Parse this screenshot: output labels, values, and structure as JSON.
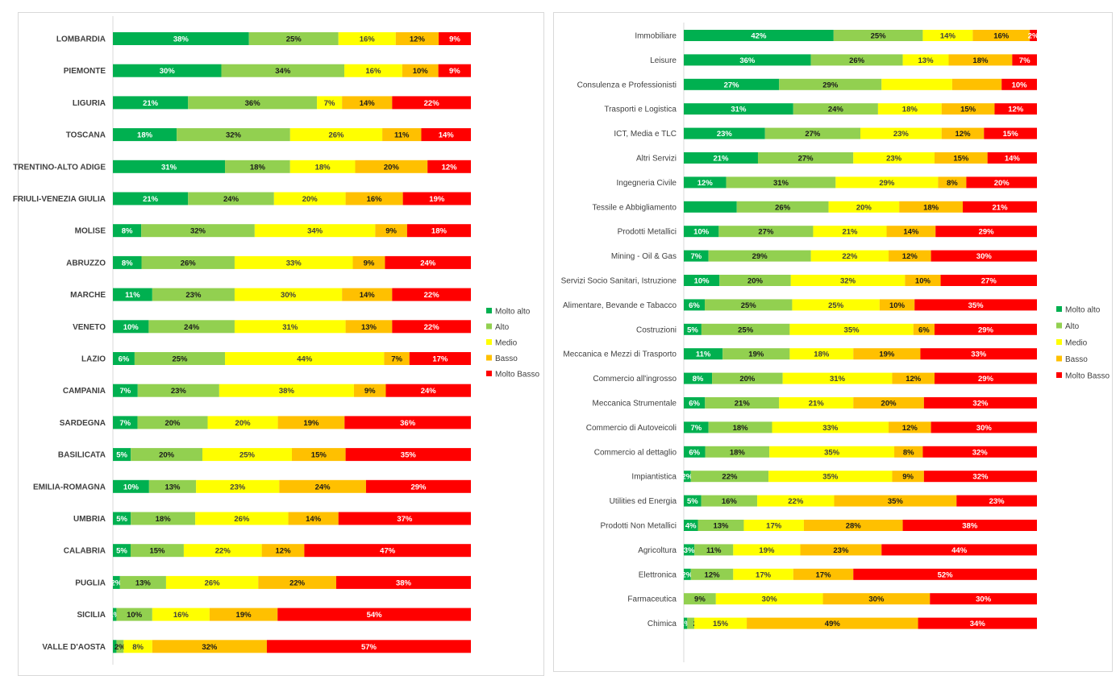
{
  "legend": [
    "Molto alto",
    "Alto",
    "Medio",
    "Basso",
    "Molto Basso"
  ],
  "colors": [
    "#00B050",
    "#92D050",
    "#FFFF00",
    "#FFC000",
    "#FF0000"
  ],
  "chart_data": [
    {
      "type": "bar",
      "orientation": "horizontal",
      "stacked": "100%",
      "legend_position": "right",
      "categories": [
        "LOMBARDIA",
        "PIEMONTE",
        "LIGURIA",
        "TOSCANA",
        "TRENTINO-ALTO ADIGE",
        "FRIULI-VENEZIA GIULIA",
        "MOLISE",
        "ABRUZZO",
        "MARCHE",
        "VENETO",
        "LAZIO",
        "CAMPANIA",
        "SARDEGNA",
        "BASILICATA",
        "EMILIA-ROMAGNA",
        "UMBRIA",
        "CALABRIA",
        "PUGLIA",
        "SICILIA",
        "VALLE D'AOSTA"
      ],
      "series": [
        {
          "name": "Molto alto",
          "values": [
            38,
            30,
            21,
            18,
            31,
            21,
            8,
            8,
            11,
            10,
            6,
            7,
            7,
            5,
            10,
            5,
            5,
            2,
            1,
            1
          ]
        },
        {
          "name": "Alto",
          "values": [
            25,
            34,
            36,
            32,
            18,
            24,
            32,
            26,
            23,
            24,
            25,
            23,
            20,
            20,
            13,
            18,
            15,
            13,
            10,
            2
          ]
        },
        {
          "name": "Medio",
          "values": [
            16,
            16,
            7,
            26,
            18,
            20,
            34,
            33,
            30,
            31,
            44,
            38,
            20,
            25,
            23,
            26,
            22,
            26,
            16,
            8
          ]
        },
        {
          "name": "Basso",
          "values": [
            12,
            10,
            14,
            11,
            20,
            16,
            9,
            9,
            14,
            13,
            7,
            9,
            19,
            15,
            24,
            14,
            12,
            22,
            19,
            32
          ]
        },
        {
          "name": "Molto Basso",
          "values": [
            9,
            9,
            22,
            14,
            12,
            19,
            18,
            24,
            22,
            22,
            17,
            24,
            36,
            35,
            29,
            37,
            47,
            38,
            54,
            57
          ]
        }
      ],
      "labels": [
        [
          "38%",
          "25%",
          "16%",
          "12%",
          "9%"
        ],
        [
          "30%",
          "34%",
          "16%",
          "10%",
          "9%"
        ],
        [
          "21%",
          "36%",
          "7%",
          "14%",
          "22%"
        ],
        [
          "18%",
          "32%",
          "26%",
          "11%",
          "14%"
        ],
        [
          "31%",
          "18%",
          "18%",
          "20%",
          "12%"
        ],
        [
          "21%",
          "24%",
          "20%",
          "16%",
          "19%"
        ],
        [
          "8%",
          "32%",
          "34%",
          "9%",
          "18%"
        ],
        [
          "8%",
          "26%",
          "33%",
          "9%",
          "24%"
        ],
        [
          "11%",
          "23%",
          "30%",
          "14%",
          "22%"
        ],
        [
          "10%",
          "24%",
          "31%",
          "13%",
          "22%"
        ],
        [
          "6%",
          "25%",
          "44%",
          "7%",
          "17%"
        ],
        [
          "7%",
          "23%",
          "38%",
          "9%",
          "24%"
        ],
        [
          "7%",
          "20%",
          "20%",
          "19%",
          "36%"
        ],
        [
          "5%",
          "20%",
          "25%",
          "15%",
          "35%"
        ],
        [
          "10%",
          "13%",
          "23%",
          "24%",
          "29%"
        ],
        [
          "5%",
          "18%",
          "26%",
          "14%",
          "37%"
        ],
        [
          "5%",
          "15%",
          "22%",
          "12%",
          "47%"
        ],
        [
          "2%",
          "13%",
          "26%",
          "22%",
          "38%"
        ],
        [
          "1%",
          "10%",
          "16%",
          "19%",
          "54%"
        ],
        [
          "",
          "2%",
          "8%",
          "32%",
          "57%"
        ]
      ]
    },
    {
      "type": "bar",
      "orientation": "horizontal",
      "stacked": "100%",
      "legend_position": "right",
      "categories": [
        "Immobiliare",
        "Leisure",
        "Consulenza e Professionisti",
        "Trasporti e Logistica",
        "ICT, Media e TLC",
        "Altri Servizi",
        "Ingegneria Civile",
        "Tessile e Abbigliamento",
        "Prodotti Metallici",
        "Mining - Oil & Gas",
        "Servizi Socio Sanitari, Istruzione",
        "Alimentare, Bevande e Tabacco",
        "Costruzioni",
        "Meccanica e Mezzi di Trasporto",
        "Commercio all'ingrosso",
        "Meccanica Strumentale",
        "Commercio di Autoveicoli",
        "Commercio al dettaglio",
        "Impiantistica",
        "Utilities ed Energia",
        "Prodotti Non Metallici",
        "Agricoltura",
        "Elettronica",
        "Farmaceutica",
        "Chimica"
      ],
      "series": [
        {
          "name": "Molto alto",
          "values": [
            42,
            36,
            27,
            31,
            23,
            21,
            12,
            15,
            10,
            7,
            10,
            6,
            5,
            11,
            8,
            6,
            7,
            6,
            2,
            5,
            4,
            3,
            2,
            0,
            1
          ]
        },
        {
          "name": "Alto",
          "values": [
            25,
            26,
            29,
            24,
            27,
            27,
            31,
            26,
            27,
            29,
            20,
            25,
            25,
            19,
            20,
            21,
            18,
            18,
            22,
            16,
            13,
            11,
            12,
            9,
            2
          ]
        },
        {
          "name": "Medio",
          "values": [
            14,
            13,
            20,
            18,
            23,
            23,
            29,
            20,
            21,
            22,
            32,
            25,
            35,
            18,
            31,
            21,
            33,
            35,
            35,
            22,
            17,
            19,
            17,
            30,
            15
          ]
        },
        {
          "name": "Basso",
          "values": [
            16,
            18,
            14,
            15,
            12,
            15,
            8,
            18,
            14,
            12,
            10,
            10,
            6,
            19,
            12,
            20,
            12,
            8,
            9,
            35,
            28,
            23,
            17,
            30,
            49
          ]
        },
        {
          "name": "Molto Basso",
          "values": [
            2,
            7,
            10,
            12,
            15,
            14,
            20,
            21,
            29,
            30,
            27,
            35,
            29,
            33,
            29,
            32,
            30,
            32,
            32,
            23,
            38,
            44,
            52,
            30,
            34
          ]
        }
      ],
      "labels": [
        [
          "42%",
          "25%",
          "14%",
          "16%",
          "2%"
        ],
        [
          "36%",
          "26%",
          "13%",
          "18%",
          "7%"
        ],
        [
          "27%",
          "29%",
          "",
          "",
          "10%"
        ],
        [
          "31%",
          "24%",
          "18%",
          "15%",
          "12%"
        ],
        [
          "23%",
          "27%",
          "23%",
          "12%",
          "15%"
        ],
        [
          "21%",
          "27%",
          "23%",
          "15%",
          "14%"
        ],
        [
          "12%",
          "31%",
          "29%",
          "8%",
          "20%"
        ],
        [
          "",
          "26%",
          "20%",
          "18%",
          "21%"
        ],
        [
          "10%",
          "27%",
          "21%",
          "14%",
          "29%"
        ],
        [
          "7%",
          "29%",
          "22%",
          "12%",
          "30%"
        ],
        [
          "10%",
          "20%",
          "32%",
          "10%",
          "27%"
        ],
        [
          "6%",
          "25%",
          "25%",
          "10%",
          "35%"
        ],
        [
          "5%",
          "25%",
          "35%",
          "6%",
          "29%"
        ],
        [
          "11%",
          "19%",
          "18%",
          "19%",
          "33%"
        ],
        [
          "8%",
          "20%",
          "31%",
          "12%",
          "29%"
        ],
        [
          "6%",
          "21%",
          "21%",
          "20%",
          "32%"
        ],
        [
          "7%",
          "18%",
          "33%",
          "12%",
          "30%"
        ],
        [
          "6%",
          "18%",
          "35%",
          "8%",
          "32%"
        ],
        [
          "2%",
          "22%",
          "35%",
          "9%",
          "32%"
        ],
        [
          "5%",
          "16%",
          "22%",
          "35%",
          "23%"
        ],
        [
          "4%",
          "13%",
          "17%",
          "28%",
          "38%"
        ],
        [
          "3%",
          "11%",
          "19%",
          "23%",
          "44%"
        ],
        [
          "2%",
          "12%",
          "17%",
          "17%",
          "52%"
        ],
        [
          "",
          "9%",
          "30%",
          "30%",
          "30%"
        ],
        [
          "1%",
          "2%",
          "15%",
          "49%",
          "34%"
        ]
      ]
    }
  ]
}
